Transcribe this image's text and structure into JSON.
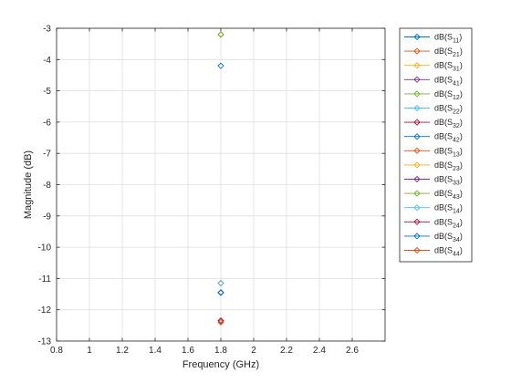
{
  "chart_data": {
    "type": "scatter",
    "xlabel": "Frequency (GHz)",
    "ylabel": "Magnitude (dB)",
    "xlim": [
      0.8,
      2.8
    ],
    "ylim": [
      -13,
      -3
    ],
    "xticks": [
      0.8,
      1,
      1.2,
      1.4,
      1.6,
      1.8,
      2,
      2.2,
      2.4,
      2.6
    ],
    "xtick_labels": [
      "0.8",
      "1",
      "1.2",
      "1.4",
      "1.6",
      "1.8",
      "2",
      "2.2",
      "2.4",
      "2.6"
    ],
    "yticks": [
      -3,
      -4,
      -5,
      -6,
      -7,
      -8,
      -9,
      -10,
      -11,
      -12,
      -13
    ],
    "ytick_labels": [
      "-3",
      "-4",
      "-5",
      "-6",
      "-7",
      "-8",
      "-9",
      "-10",
      "-11",
      "-12",
      "-13"
    ],
    "grid": true,
    "legend_position": "outside-right",
    "marker": "diamond",
    "series": [
      {
        "name": "dB(S11)",
        "base": "dB(S",
        "sub": "11",
        "color": "#0072BD",
        "x": [
          1.8
        ],
        "y": [
          -4.2
        ]
      },
      {
        "name": "dB(S21)",
        "base": "dB(S",
        "sub": "21",
        "color": "#D95319",
        "x": [
          1.8
        ],
        "y": [
          -12.35
        ]
      },
      {
        "name": "dB(S31)",
        "base": "dB(S",
        "sub": "31",
        "color": "#EDB120",
        "x": [
          1.8
        ],
        "y": [
          -3.2
        ]
      },
      {
        "name": "dB(S41)",
        "base": "dB(S",
        "sub": "41",
        "color": "#7E2F8E",
        "x": [
          1.8
        ],
        "y": [
          -11.15
        ]
      },
      {
        "name": "dB(S12)",
        "base": "dB(S",
        "sub": "12",
        "color": "#77AC30",
        "x": [
          1.8
        ],
        "y": [
          -3.2
        ]
      },
      {
        "name": "dB(S22)",
        "base": "dB(S",
        "sub": "22",
        "color": "#4DBEEE",
        "x": [
          1.8
        ],
        "y": [
          -11.45
        ]
      },
      {
        "name": "dB(S32)",
        "base": "dB(S",
        "sub": "32",
        "color": "#A2142F",
        "x": [
          1.8
        ],
        "y": [
          -11.15
        ]
      },
      {
        "name": "dB(S42)",
        "base": "dB(S",
        "sub": "42",
        "color": "#0072BD",
        "x": [
          1.8
        ],
        "y": [
          -11.45
        ]
      },
      {
        "name": "dB(S13)",
        "base": "dB(S",
        "sub": "13",
        "color": "#D95319",
        "x": [
          1.8
        ],
        "y": [
          -12.35
        ]
      },
      {
        "name": "dB(S23)",
        "base": "dB(S",
        "sub": "23",
        "color": "#EDB120",
        "x": [
          1.8
        ],
        "y": [
          -11.15
        ]
      },
      {
        "name": "dB(S33)",
        "base": "dB(S",
        "sub": "33",
        "color": "#7E2F8E",
        "x": [
          1.8
        ],
        "y": [
          -11.45
        ]
      },
      {
        "name": "dB(S43)",
        "base": "dB(S",
        "sub": "43",
        "color": "#77AC30",
        "x": [
          1.8
        ],
        "y": [
          -3.2
        ]
      },
      {
        "name": "dB(S14)",
        "base": "dB(S",
        "sub": "14",
        "color": "#4DBEEE",
        "x": [
          1.8
        ],
        "y": [
          -11.15
        ]
      },
      {
        "name": "dB(S24)",
        "base": "dB(S",
        "sub": "24",
        "color": "#A2142F",
        "x": [
          1.8
        ],
        "y": [
          -12.35
        ]
      },
      {
        "name": "dB(S34)",
        "base": "dB(S",
        "sub": "34",
        "color": "#0072BD",
        "x": [
          1.8
        ],
        "y": [
          -11.45
        ]
      },
      {
        "name": "dB(S44)",
        "base": "dB(S",
        "sub": "44",
        "color": "#D95319",
        "x": [
          1.8
        ],
        "y": [
          -12.4
        ]
      }
    ]
  }
}
